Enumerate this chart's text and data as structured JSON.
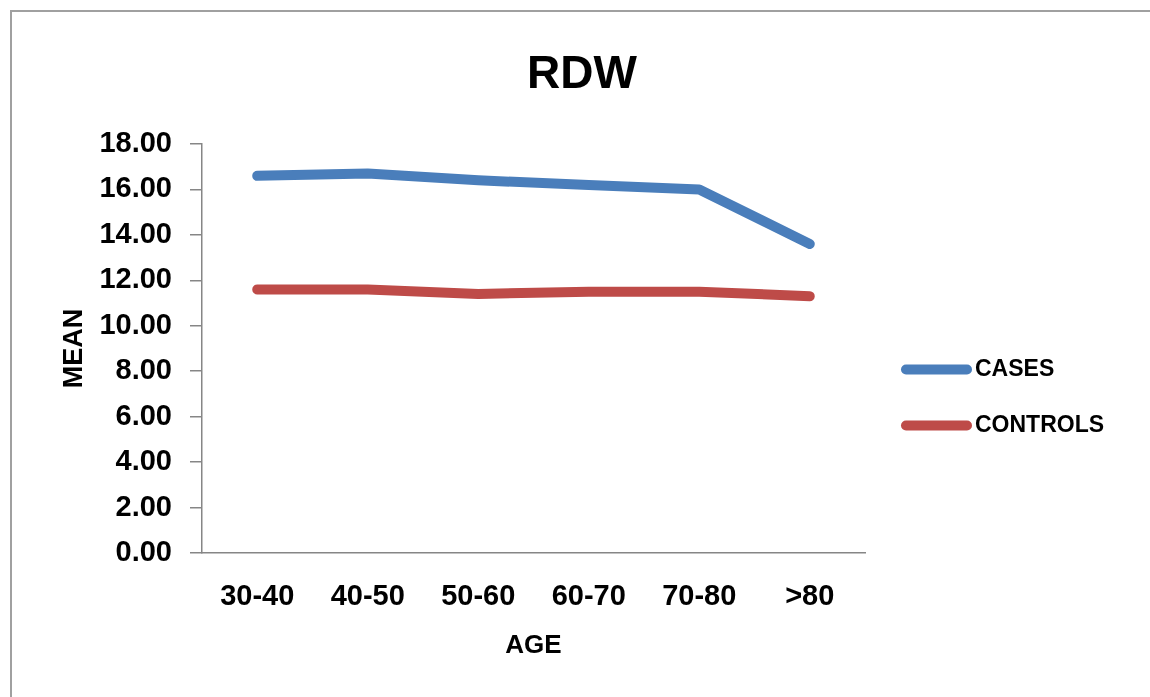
{
  "chart_data": {
    "type": "line",
    "title": "RDW",
    "xlabel": "AGE",
    "ylabel": "MEAN",
    "categories": [
      "30-40",
      "40-50",
      "50-60",
      "60-70",
      "70-80",
      ">80"
    ],
    "series": [
      {
        "name": "CASES",
        "color": "#4a7ebb",
        "values": [
          16.6,
          16.7,
          16.4,
          16.2,
          16.0,
          13.6
        ]
      },
      {
        "name": "CONTROLS",
        "color": "#be4b48",
        "values": [
          11.6,
          11.6,
          11.4,
          11.5,
          11.5,
          11.3
        ]
      }
    ],
    "ylim": [
      0,
      18
    ],
    "yticks": [
      {
        "value": 0,
        "label": "0.00"
      },
      {
        "value": 2,
        "label": "2.00"
      },
      {
        "value": 4,
        "label": "4.00"
      },
      {
        "value": 6,
        "label": "6.00"
      },
      {
        "value": 8,
        "label": "8.00"
      },
      {
        "value": 10,
        "label": "10.00"
      },
      {
        "value": 12,
        "label": "12.00"
      },
      {
        "value": 14,
        "label": "14.00"
      },
      {
        "value": 16,
        "label": "16.00"
      },
      {
        "value": 18,
        "label": "18.00"
      }
    ],
    "legend": "right",
    "marker": "none"
  }
}
